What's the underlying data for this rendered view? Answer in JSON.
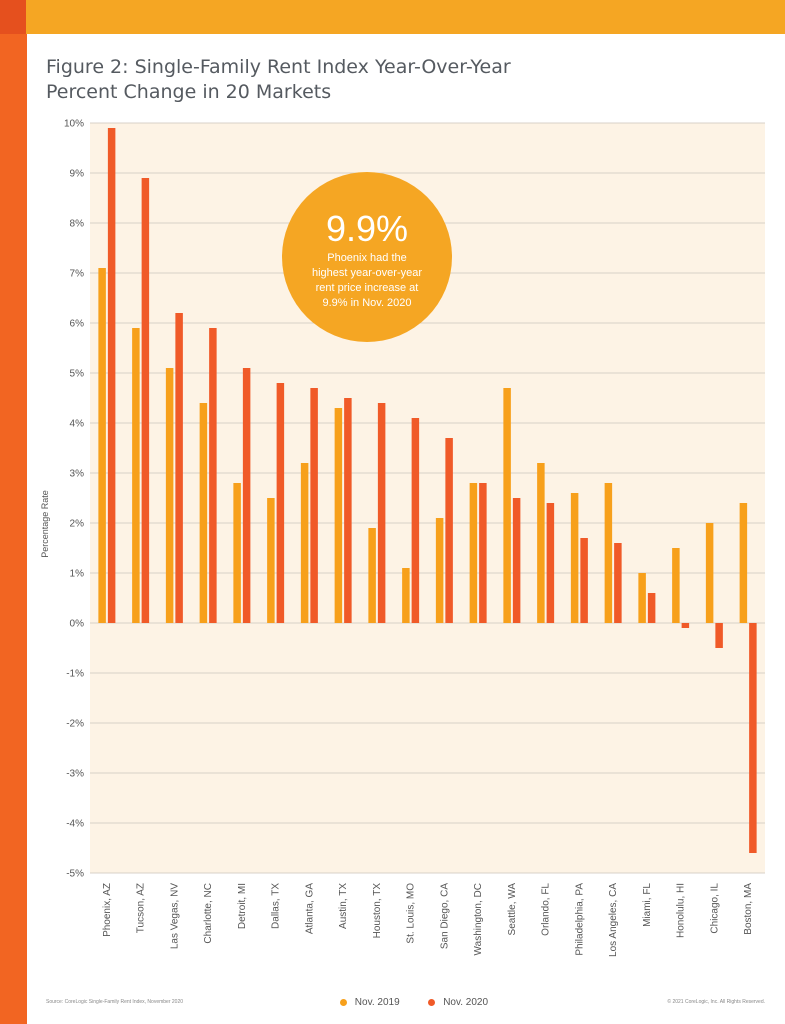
{
  "title_lines": [
    "Figure 2: Single-Family Rent Index Year-Over-Year",
    "Percent Change in 20 Markets"
  ],
  "callout": {
    "value": "9.9%",
    "text_lines": [
      "Phoenix had the",
      "highest year-over-year",
      "rent price increase at",
      "9.9% in Nov. 2020"
    ]
  },
  "source": "Source: CoreLogic Single-Family Rent Index, November 2020",
  "copyright": "© 2021 CoreLogic, Inc. All Rights Reserved.",
  "colors": {
    "nov2019": "#f7a01b",
    "nov2020": "#f05a28",
    "plot_bg": "#fdf3e5",
    "callout": "#f5a623",
    "top_bar": "#f5a623",
    "side_stripe": "#f26522"
  },
  "chart_data": {
    "type": "bar",
    "ylabel": "Percentage Rate",
    "xlabel": "",
    "ylim": [
      -5,
      10
    ],
    "ytick_values": [
      10,
      9,
      8,
      7,
      6,
      5,
      4,
      3,
      2,
      1,
      0,
      -1,
      -2,
      -3,
      -4,
      -5
    ],
    "ytick_labels": [
      "10%",
      "9%",
      "8%",
      "7%",
      "6%",
      "5%",
      "4%",
      "3%",
      "2%",
      "1%",
      "0%",
      "-1%",
      "-2%",
      "-3%",
      "-4%",
      "-5%"
    ],
    "grid": true,
    "legend_position": "bottom",
    "categories": [
      "Phoenix, AZ",
      "Tucson, AZ",
      "Las Vegas, NV",
      "Charlotte, NC",
      "Detroit, MI",
      "Dallas, TX",
      "Atlanta, GA",
      "Austin, TX",
      "Houston, TX",
      "St. Louis, MO",
      "San Diego, CA",
      "Washington, DC",
      "Seattle, WA",
      "Orlando, FL",
      "Philadelphia, PA",
      "Los Angeles, CA",
      "Miami, FL",
      "Honolulu, HI",
      "Chicago, IL",
      "Boston, MA"
    ],
    "series": [
      {
        "name": "Nov. 2019",
        "values": [
          7.1,
          5.9,
          5.1,
          4.4,
          2.8,
          2.5,
          3.2,
          4.3,
          1.9,
          1.1,
          2.1,
          2.8,
          4.7,
          3.2,
          2.6,
          2.8,
          1.0,
          1.5,
          2.0,
          2.4
        ]
      },
      {
        "name": "Nov. 2020",
        "values": [
          9.9,
          8.9,
          6.2,
          5.9,
          5.1,
          4.8,
          4.7,
          4.5,
          4.4,
          4.1,
          3.7,
          2.8,
          2.5,
          2.4,
          1.7,
          1.6,
          0.6,
          -0.1,
          -0.5,
          -4.6
        ]
      }
    ]
  }
}
